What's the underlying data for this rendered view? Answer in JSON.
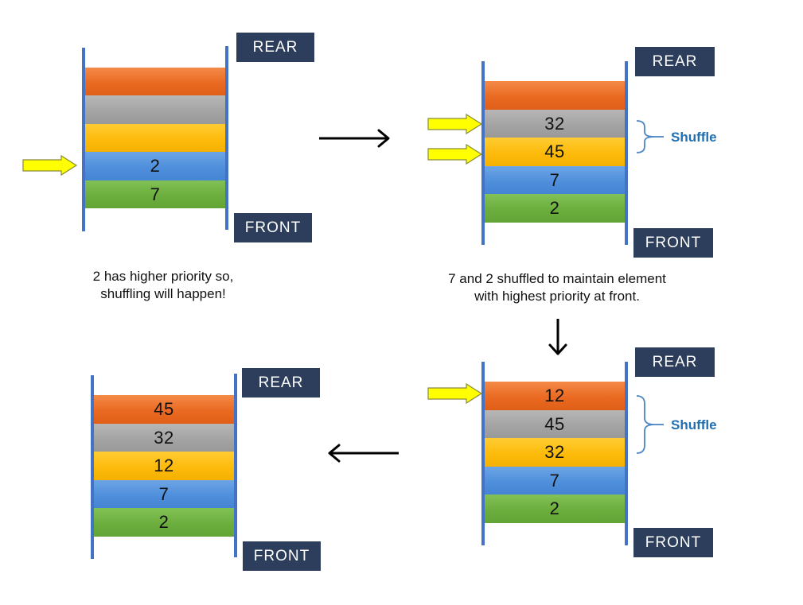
{
  "labels": {
    "rear": "REAR",
    "front": "FRONT",
    "shuffle": "Shuffle"
  },
  "panel1": {
    "bars": [
      "",
      "",
      "",
      "2",
      "7"
    ],
    "caption_line1": "2 has higher priority so,",
    "caption_line2": "shuffling will happen!"
  },
  "panel2": {
    "bars": [
      "",
      "32",
      "45",
      "7",
      "2"
    ],
    "caption_line1": "7 and 2 shuffled to maintain element",
    "caption_line2": "with highest priority at front."
  },
  "panel3": {
    "bars": [
      "12",
      "45",
      "32",
      "7",
      "2"
    ]
  },
  "panel4": {
    "bars": [
      "45",
      "32",
      "12",
      "7",
      "2"
    ]
  },
  "colors": {
    "orange": "#ea6a22",
    "gray": "#a4a4a4",
    "yellow": "#fdbb0c",
    "blue": "#4f8fdb",
    "green": "#6cae3e",
    "label_box": "#2c3e5b",
    "rail": "#4472c4",
    "pointer_arrow": "#ffff00",
    "shuffle_text": "#1f6fb2"
  }
}
